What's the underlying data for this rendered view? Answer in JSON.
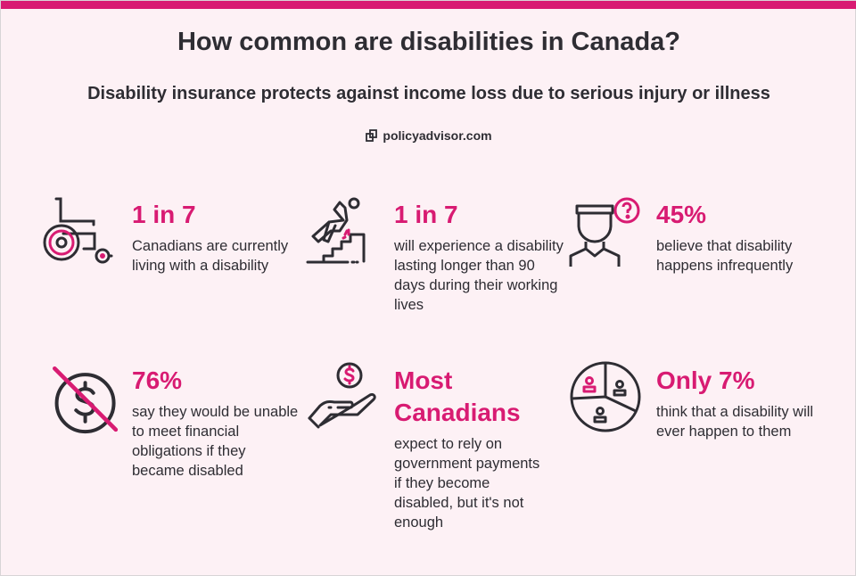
{
  "header": {
    "title": "How common are disabilities in Canada?",
    "subtitle": "Disability insurance protects against income loss due to serious injury or illness",
    "brand": "policyadvisor.com"
  },
  "colors": {
    "accent": "#d81b72",
    "background": "#fdf1f5",
    "text": "#2e2d33"
  },
  "stats": [
    {
      "icon": "wheelchair-icon",
      "headline": "1 in 7",
      "body": "Canadians are currently living with a disability"
    },
    {
      "icon": "falling-on-stairs-icon",
      "headline": "1 in 7",
      "body": "will experience a disability lasting longer than 90 days during their working lives"
    },
    {
      "icon": "person-question-icon",
      "headline": "45%",
      "body": "believe that disability happens infrequently"
    },
    {
      "icon": "no-money-icon",
      "headline": "76%",
      "body": "say they would be unable to meet financial obligations if they became disabled"
    },
    {
      "icon": "hand-coin-icon",
      "headline": "Most Canadians",
      "body": "expect to rely on government payments if they become disabled, but it's not enough"
    },
    {
      "icon": "pie-chart-people-icon",
      "headline": "Only 7%",
      "body": "think that a disability will ever happen to them"
    }
  ]
}
